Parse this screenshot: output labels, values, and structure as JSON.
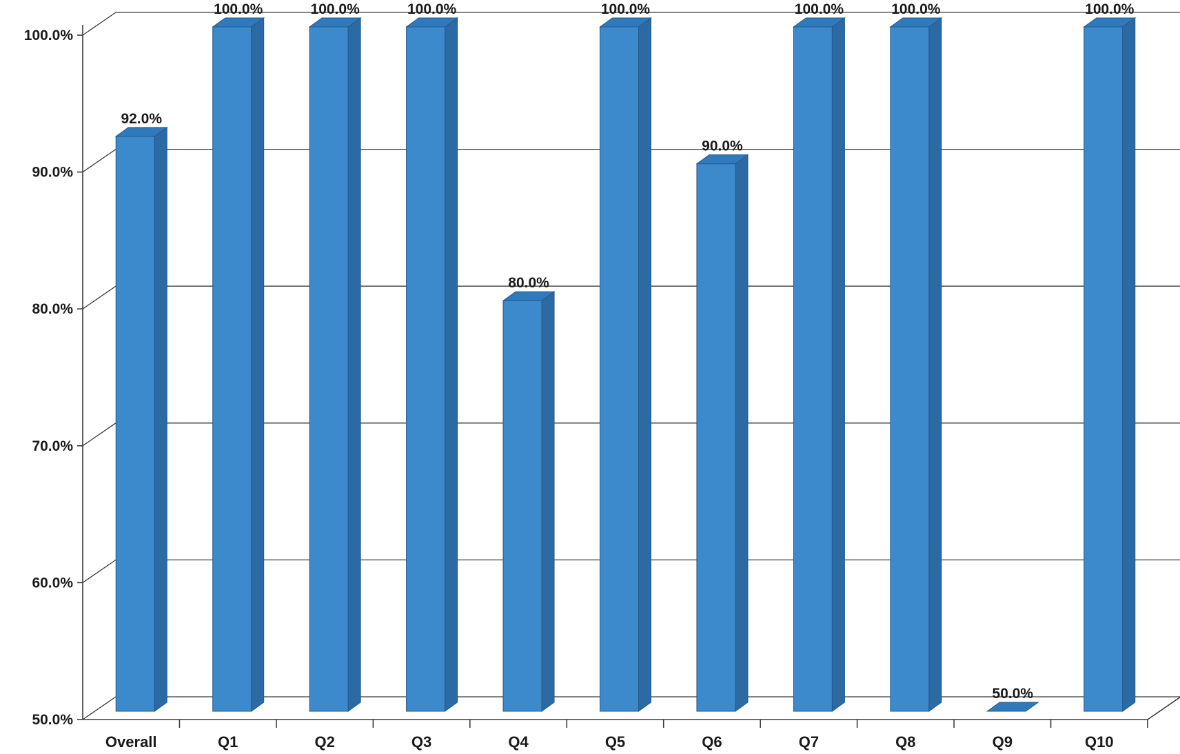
{
  "chart_data": {
    "type": "bar",
    "style": "3d-column",
    "categories": [
      "Overall",
      "Q1",
      "Q2",
      "Q3",
      "Q4",
      "Q5",
      "Q6",
      "Q7",
      "Q8",
      "Q9",
      "Q10"
    ],
    "values": [
      92.0,
      100.0,
      100.0,
      100.0,
      80.0,
      100.0,
      90.0,
      100.0,
      100.0,
      50.0,
      100.0
    ],
    "data_labels": [
      "92.0%",
      "100.0%",
      "100.0%",
      "100.0%",
      "80.0%",
      "100.0%",
      "90.0%",
      "100.0%",
      "100.0%",
      "50.0%",
      "100.0%"
    ],
    "title": "",
    "xlabel": "",
    "ylabel": "",
    "ylim": [
      50,
      100
    ],
    "yticks": [
      50,
      60,
      70,
      80,
      90,
      100
    ],
    "ytick_labels": [
      "50.0%",
      "60.0%",
      "70.0%",
      "80.0%",
      "90.0%",
      "100.0%"
    ],
    "grid": true,
    "legend": "none",
    "colors": {
      "bar_front": "#3c89cc",
      "bar_side": "#2b6aa3",
      "bar_top": "#2f79bd",
      "bar_edge": "#235a8c",
      "grid": "#3a3a3a"
    }
  }
}
